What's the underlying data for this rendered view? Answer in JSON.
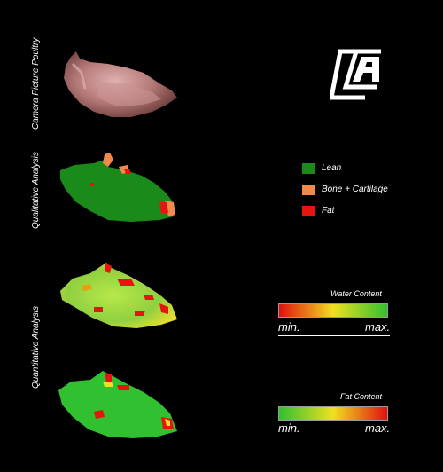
{
  "rows": {
    "camera_label": "Camera Picture Poultry",
    "qualitative_label": "Qualitative Analysis",
    "quantitative_label": "Quantitative Analysis"
  },
  "legend": {
    "items": [
      {
        "label": "Lean",
        "color": "#1a8a1a"
      },
      {
        "label": "Bone + Cartilage",
        "color": "#f2894c"
      },
      {
        "label": "Fat",
        "color": "#e8140f"
      }
    ]
  },
  "water_scale": {
    "title": "Water Content",
    "min": "min.",
    "max": "max.",
    "colors": [
      "#e0100f",
      "#f0e020",
      "#30c030"
    ]
  },
  "fat_scale": {
    "title": "Fat Content",
    "min": "min.",
    "max": "max.",
    "colors": [
      "#30c030",
      "#f0e020",
      "#e0100f"
    ]
  },
  "logo": {
    "icon": "company-logo-icon"
  }
}
